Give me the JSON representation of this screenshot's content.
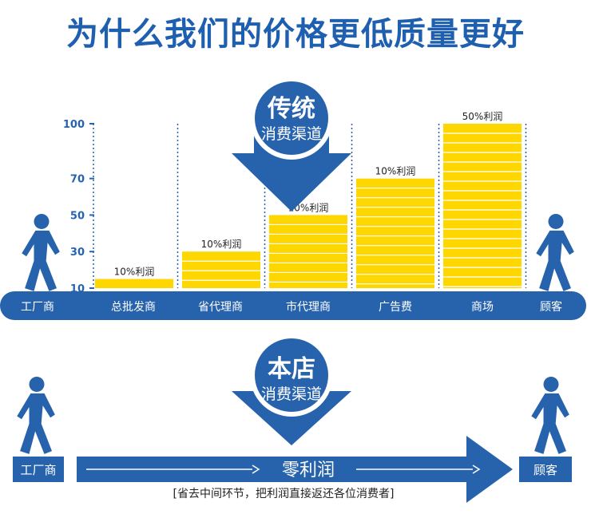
{
  "title": "为什么我们的价格更低质量更好",
  "colors": {
    "blue": "#2763ad",
    "yellow": "#ffd700",
    "white": "#ffffff"
  },
  "icons": [
    "walking-person-icon",
    "down-arrow-icon",
    "right-arrow-icon"
  ],
  "traditional": {
    "badge_line1": "传统",
    "badge_line2": "消费渠道",
    "stages": [
      "工厂商",
      "总批发商",
      "省代理商",
      "市代理商",
      "广告费",
      "商场",
      "顾客"
    ]
  },
  "chart_data": {
    "type": "bar",
    "categories": [
      "总批发商",
      "省代理商",
      "市代理商",
      "广告费",
      "商场"
    ],
    "values": [
      15,
      30,
      50,
      70,
      100
    ],
    "data_labels": [
      "10%利润",
      "10%利润",
      "10%利润",
      "10%利润",
      "50%利润"
    ],
    "y_ticks": [
      10,
      30,
      50,
      70,
      100
    ],
    "y_tick_labels": [
      "10",
      "30",
      "50",
      "70",
      "100"
    ],
    "ylim": [
      10,
      100
    ],
    "grid": false,
    "title": "",
    "xlabel": "",
    "ylabel": ""
  },
  "store": {
    "badge_line1": "本店",
    "badge_line2": "消费渠道",
    "start_label": "工厂商",
    "end_label": "顾客",
    "arrow_text": "零利润",
    "note": "[省去中间环节，把利润直接返还各位消费者]"
  }
}
